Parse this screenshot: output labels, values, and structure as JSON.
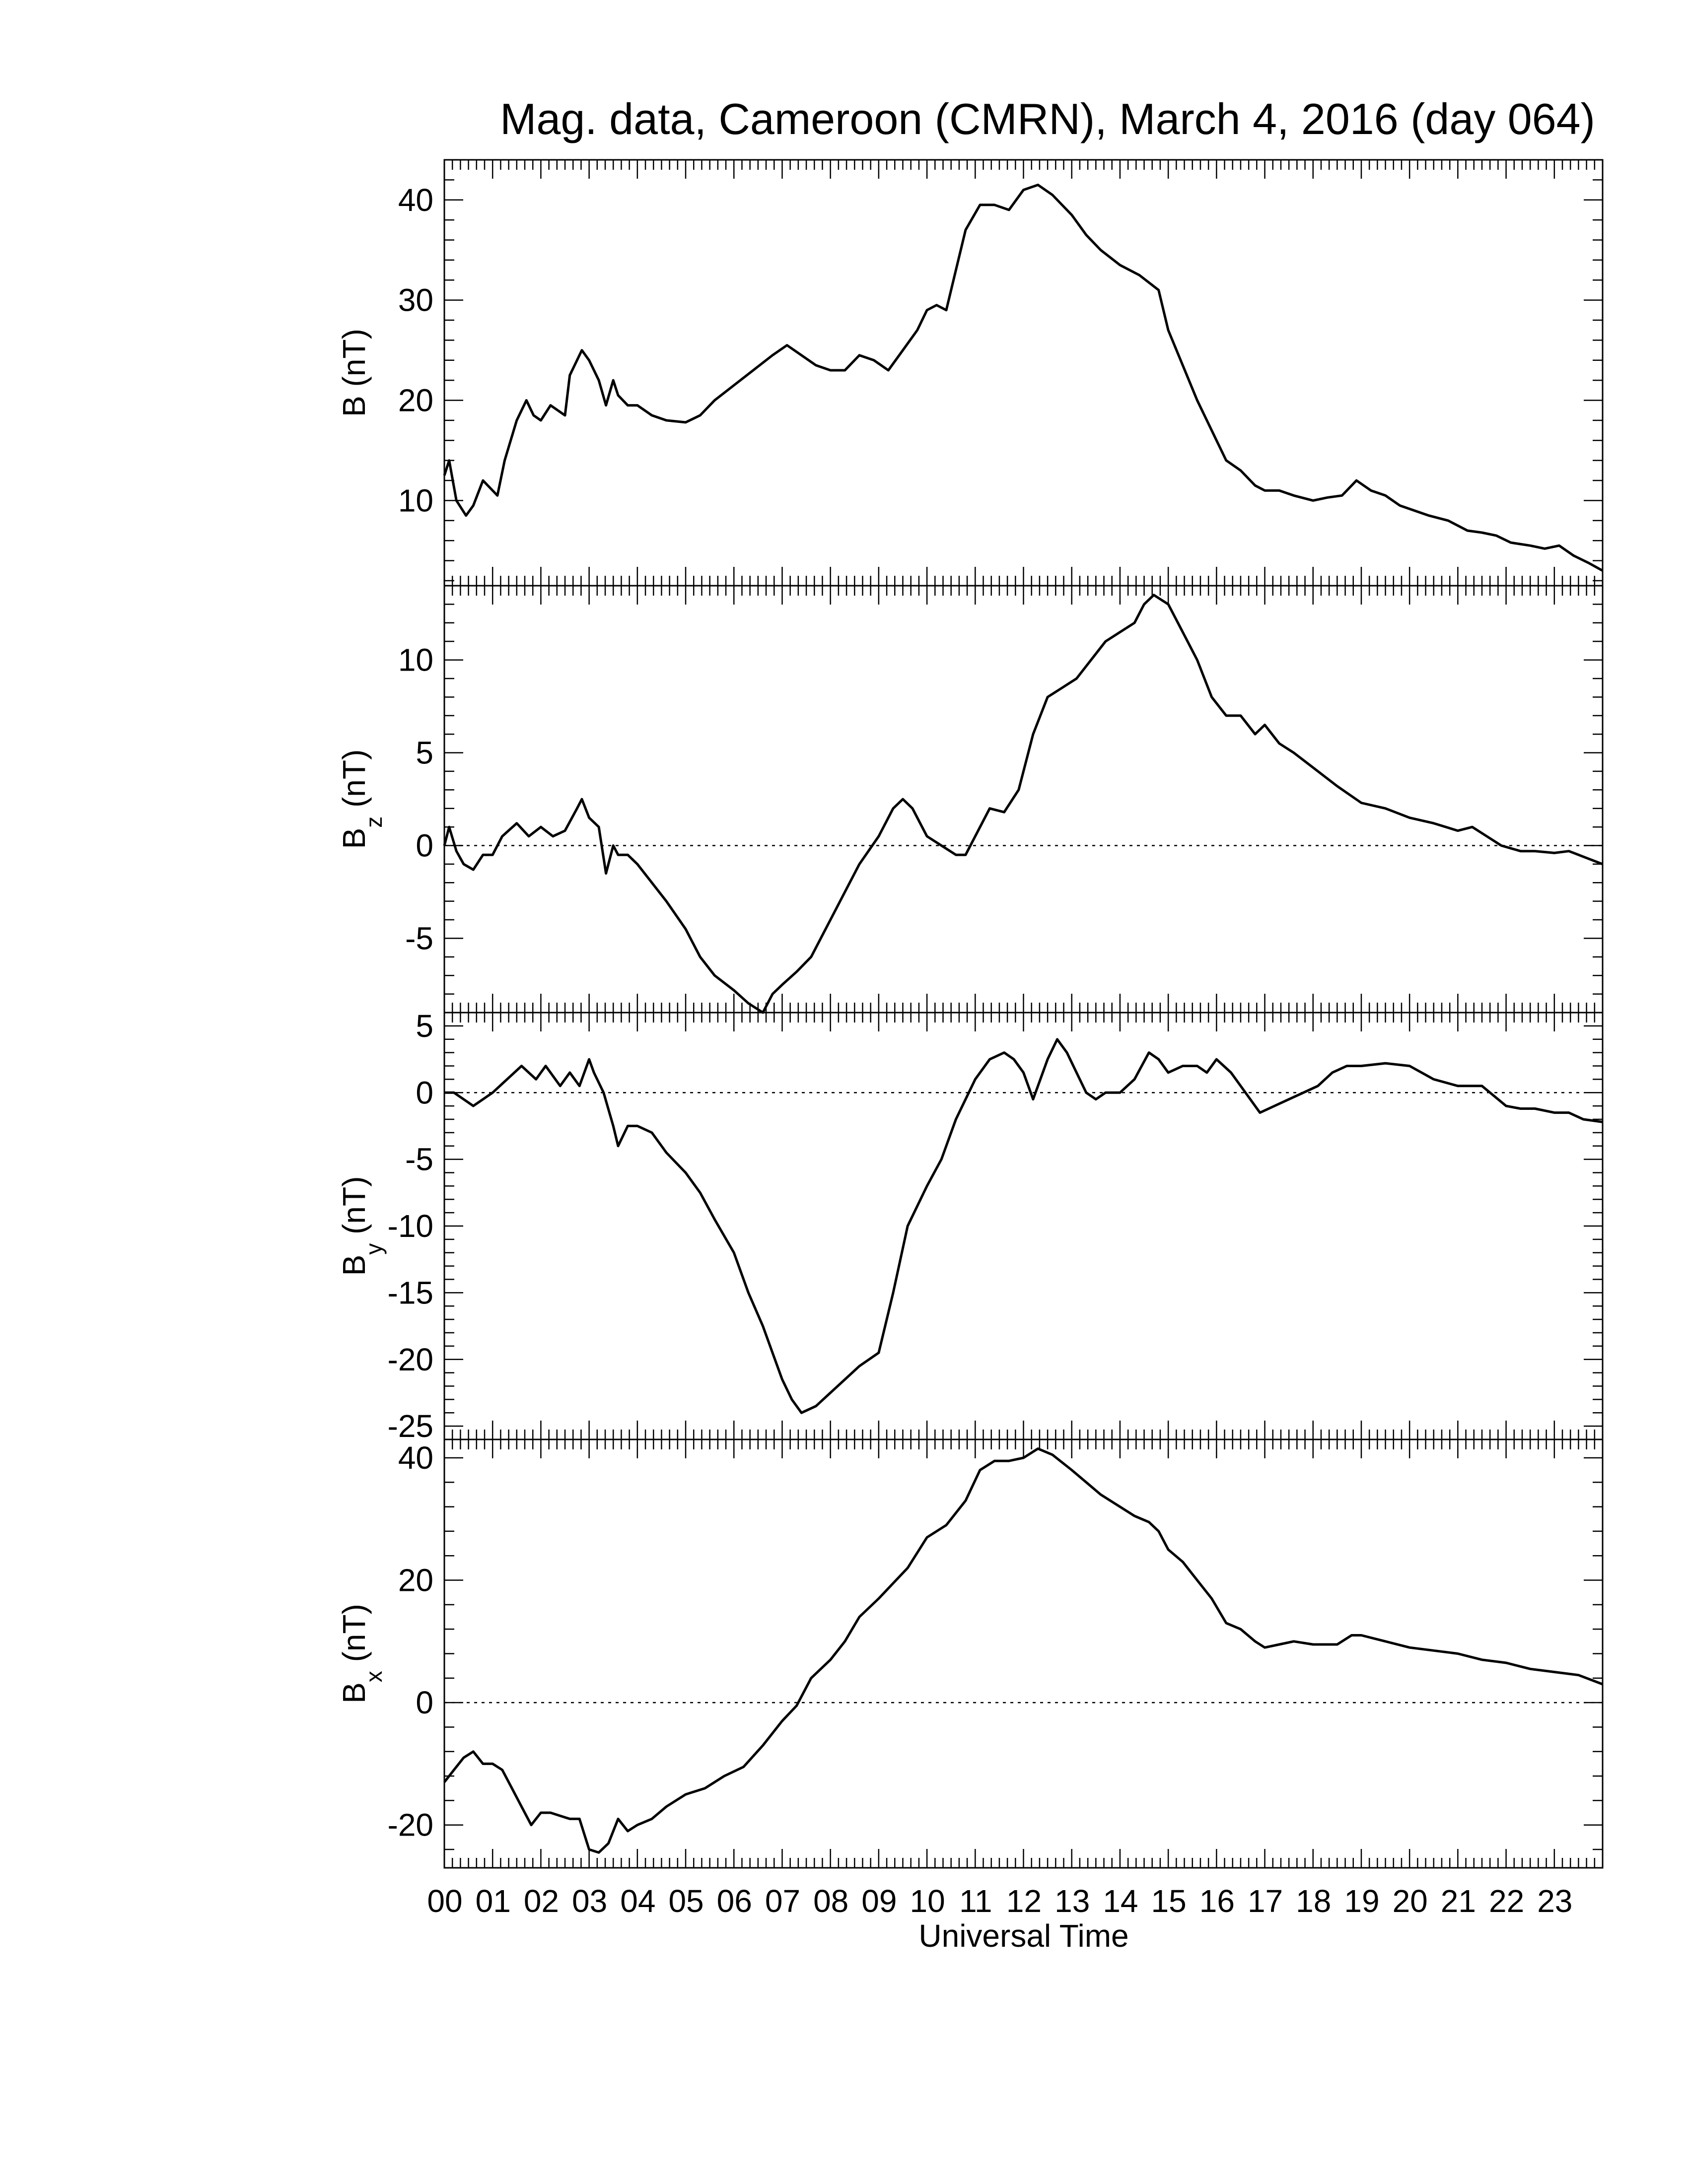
{
  "chart_data": {
    "type": "line",
    "title": "Mag. data, Cameroon (CMRN), March 4, 2016 (day 064)",
    "xlabel": "Universal Time",
    "x_tick_labels": [
      "00",
      "01",
      "02",
      "03",
      "04",
      "05",
      "06",
      "07",
      "08",
      "09",
      "10",
      "11",
      "12",
      "13",
      "14",
      "15",
      "16",
      "17",
      "18",
      "19",
      "20",
      "21",
      "22",
      "23"
    ],
    "xlim": [
      0,
      24
    ],
    "x_units": "hours UT",
    "panels": [
      {
        "ylabel_main": "B",
        "ylabel_sub": "",
        "ylabel_unit": "(nT)",
        "ylim": [
          1.5,
          44
        ],
        "yticks": [
          10,
          20,
          30,
          40
        ],
        "zero_line": false,
        "x": [
          0,
          0.1,
          0.25,
          0.45,
          0.6,
          0.8,
          1.0,
          1.1,
          1.25,
          1.5,
          1.7,
          1.85,
          2.0,
          2.2,
          2.5,
          2.6,
          2.85,
          3.0,
          3.2,
          3.35,
          3.5,
          3.6,
          3.8,
          4.0,
          4.3,
          4.6,
          5.0,
          5.3,
          5.6,
          6.0,
          6.4,
          6.8,
          7.1,
          7.4,
          7.7,
          8.0,
          8.3,
          8.6,
          8.9,
          9.2,
          9.5,
          9.8,
          10.0,
          10.2,
          10.4,
          10.6,
          10.8,
          11.1,
          11.4,
          11.7,
          12.0,
          12.3,
          12.6,
          13.0,
          13.3,
          13.6,
          14.0,
          14.4,
          14.8,
          15.0,
          15.3,
          15.6,
          15.9,
          16.2,
          16.5,
          16.8,
          17.0,
          17.3,
          17.6,
          18.0,
          18.3,
          18.6,
          18.9,
          19.2,
          19.5,
          19.8,
          20.1,
          20.4,
          20.8,
          21.2,
          21.5,
          21.8,
          22.1,
          22.5,
          22.8,
          23.1,
          23.4,
          23.7,
          24.0
        ],
        "y": [
          12.5,
          14,
          10,
          8.5,
          9.5,
          12,
          11,
          10.5,
          14,
          18,
          20,
          18.5,
          18,
          19.5,
          18.5,
          22.5,
          25,
          24,
          22,
          19.5,
          22,
          20.5,
          19.5,
          19.5,
          18.5,
          18,
          17.8,
          18.5,
          20,
          21.5,
          23,
          24.5,
          25.5,
          24.5,
          23.5,
          23,
          23,
          24.5,
          24,
          23,
          25,
          27,
          29,
          29.5,
          29,
          33,
          37,
          39.5,
          39.5,
          39,
          41,
          41.5,
          40.5,
          38.5,
          36.5,
          35,
          33.5,
          32.5,
          31,
          27,
          23.5,
          20,
          17,
          14,
          13,
          11.5,
          11,
          11,
          10.5,
          10,
          10.3,
          10.5,
          12,
          11,
          10.5,
          9.5,
          9,
          8.5,
          8,
          7,
          6.8,
          6.5,
          5.8,
          5.5,
          5.2,
          5.5,
          4.5,
          3.8,
          3
        ]
      },
      {
        "ylabel_main": "B",
        "ylabel_sub": "z",
        "ylabel_unit": "(nT)",
        "ylim": [
          -9,
          14
        ],
        "yticks": [
          -5,
          0,
          5,
          10
        ],
        "zero_line": true,
        "x": [
          0,
          0.1,
          0.25,
          0.4,
          0.6,
          0.8,
          1.0,
          1.2,
          1.5,
          1.75,
          2.0,
          2.25,
          2.5,
          2.75,
          2.85,
          3.0,
          3.2,
          3.35,
          3.5,
          3.6,
          3.8,
          4.0,
          4.3,
          4.6,
          5.0,
          5.3,
          5.6,
          6.0,
          6.3,
          6.6,
          6.8,
          7.0,
          7.3,
          7.6,
          8.0,
          8.3,
          8.6,
          9.0,
          9.3,
          9.5,
          9.7,
          10.0,
          10.3,
          10.6,
          10.8,
          11.0,
          11.3,
          11.6,
          11.9,
          12.2,
          12.5,
          12.8,
          13.1,
          13.4,
          13.7,
          14.0,
          14.3,
          14.5,
          14.7,
          15.0,
          15.3,
          15.6,
          15.9,
          16.2,
          16.5,
          16.8,
          17.0,
          17.3,
          17.6,
          18.0,
          18.5,
          19.0,
          19.5,
          20.0,
          20.5,
          21.0,
          21.3,
          21.6,
          21.9,
          22.3,
          22.6,
          23.0,
          23.3,
          23.6,
          24.0
        ],
        "y": [
          0,
          1,
          -0.3,
          -1,
          -1.3,
          -0.5,
          -0.5,
          0.5,
          1.2,
          0.5,
          1,
          0.5,
          0.8,
          2,
          2.5,
          1.5,
          1,
          -1.5,
          0,
          -0.5,
          -0.5,
          -1,
          -2,
          -3,
          -4.5,
          -6,
          -7,
          -7.8,
          -8.5,
          -9,
          -8,
          -7.5,
          -6.8,
          -6,
          -4,
          -2.5,
          -1,
          0.5,
          2,
          2.5,
          2,
          0.5,
          0,
          -0.5,
          -0.5,
          0.5,
          2,
          1.8,
          3,
          6,
          8,
          8.5,
          9,
          10,
          11,
          11.5,
          12,
          13,
          13.5,
          13,
          11.5,
          10,
          8,
          7,
          7,
          6,
          6.5,
          5.5,
          5,
          4.2,
          3.2,
          2.3,
          2,
          1.5,
          1.2,
          0.8,
          1,
          0.5,
          0,
          -0.3,
          -0.3,
          -0.4,
          -0.3,
          -0.6,
          -1
        ]
      },
      {
        "ylabel_main": "B",
        "ylabel_sub": "y",
        "ylabel_unit": "(nT)",
        "ylim": [
          -26,
          6
        ],
        "yticks": [
          -25,
          -20,
          -15,
          -10,
          -5,
          0,
          5
        ],
        "zero_line": true,
        "x": [
          0,
          0.2,
          0.4,
          0.6,
          0.8,
          1.0,
          1.3,
          1.6,
          1.9,
          2.1,
          2.4,
          2.6,
          2.8,
          3.0,
          3.1,
          3.3,
          3.5,
          3.6,
          3.8,
          4.0,
          4.3,
          4.6,
          5.0,
          5.3,
          5.6,
          6.0,
          6.3,
          6.6,
          6.8,
          7.0,
          7.2,
          7.4,
          7.7,
          8.0,
          8.3,
          8.6,
          9.0,
          9.3,
          9.6,
          10.0,
          10.3,
          10.6,
          11.0,
          11.3,
          11.6,
          11.8,
          12.0,
          12.2,
          12.5,
          12.7,
          12.9,
          13.1,
          13.3,
          13.5,
          13.7,
          14.0,
          14.3,
          14.6,
          14.8,
          15.0,
          15.3,
          15.6,
          15.8,
          16.0,
          16.3,
          16.6,
          16.9,
          17.2,
          17.5,
          17.8,
          18.1,
          18.4,
          18.7,
          19.0,
          19.5,
          20.0,
          20.5,
          21.0,
          21.5,
          22.0,
          22.3,
          22.6,
          23.0,
          23.3,
          23.6,
          24.0
        ],
        "y": [
          0,
          0,
          -0.5,
          -1,
          -0.5,
          0,
          1,
          2,
          1,
          2,
          0.5,
          1.5,
          0.5,
          2.5,
          1.5,
          0,
          -2.5,
          -4,
          -2.5,
          -2.5,
          -3,
          -4.5,
          -6,
          -7.5,
          -9.5,
          -12,
          -15,
          -17.5,
          -19.5,
          -21.5,
          -23,
          -24,
          -23.5,
          -22.5,
          -21.5,
          -20.5,
          -19.5,
          -15,
          -10,
          -7,
          -5,
          -2,
          1,
          2.5,
          3,
          2.5,
          1.5,
          -0.5,
          2.5,
          4,
          3,
          1.5,
          0,
          -0.5,
          0,
          0,
          1,
          3,
          2.5,
          1.5,
          2,
          2,
          1.5,
          2.5,
          1.5,
          0,
          -1.5,
          -1,
          -0.5,
          0,
          0.5,
          1.5,
          2,
          2,
          2.2,
          2,
          1,
          0.5,
          0.5,
          -1,
          -1.2,
          -1.2,
          -1.5,
          -1.5,
          -2,
          -2.2
        ]
      },
      {
        "ylabel_main": "B",
        "ylabel_sub": "x",
        "ylabel_unit": "(nT)",
        "ylim": [
          -27,
          43
        ],
        "yticks": [
          -20,
          0,
          20,
          40
        ],
        "zero_line": true,
        "x": [
          0,
          0.2,
          0.4,
          0.6,
          0.8,
          1.0,
          1.2,
          1.4,
          1.6,
          1.8,
          2.0,
          2.2,
          2.4,
          2.6,
          2.8,
          3.0,
          3.2,
          3.4,
          3.6,
          3.8,
          4.0,
          4.3,
          4.6,
          5.0,
          5.4,
          5.8,
          6.2,
          6.6,
          7.0,
          7.3,
          7.6,
          8.0,
          8.3,
          8.6,
          9.0,
          9.3,
          9.6,
          10.0,
          10.4,
          10.8,
          11.1,
          11.4,
          11.7,
          12.0,
          12.3,
          12.6,
          13.0,
          13.3,
          13.6,
          14.0,
          14.3,
          14.6,
          14.8,
          15.0,
          15.3,
          15.6,
          15.9,
          16.2,
          16.5,
          16.8,
          17.0,
          17.3,
          17.6,
          18.0,
          18.5,
          18.8,
          19.0,
          19.5,
          20.0,
          20.5,
          21.0,
          21.5,
          22.0,
          22.5,
          23.0,
          23.5,
          24.0
        ],
        "y": [
          -13,
          -11,
          -9,
          -8,
          -10,
          -10,
          -11,
          -14,
          -17,
          -20,
          -18,
          -18,
          -18.5,
          -19,
          -19,
          -24,
          -24.5,
          -23,
          -19,
          -21,
          -20,
          -19,
          -17,
          -15,
          -14,
          -12,
          -10.5,
          -7,
          -3,
          -0.5,
          4,
          7,
          10,
          14,
          17,
          19.5,
          22,
          27,
          29,
          33,
          38,
          39.5,
          39.5,
          40,
          41.5,
          40.5,
          38,
          36,
          34,
          32,
          30.5,
          29.5,
          28,
          25,
          23,
          20,
          17,
          13,
          12,
          10,
          9,
          9.5,
          10,
          9.5,
          9.5,
          11,
          11,
          10,
          9,
          8.5,
          8,
          7,
          6.5,
          5.5,
          5,
          4.5,
          3
        ]
      }
    ]
  }
}
